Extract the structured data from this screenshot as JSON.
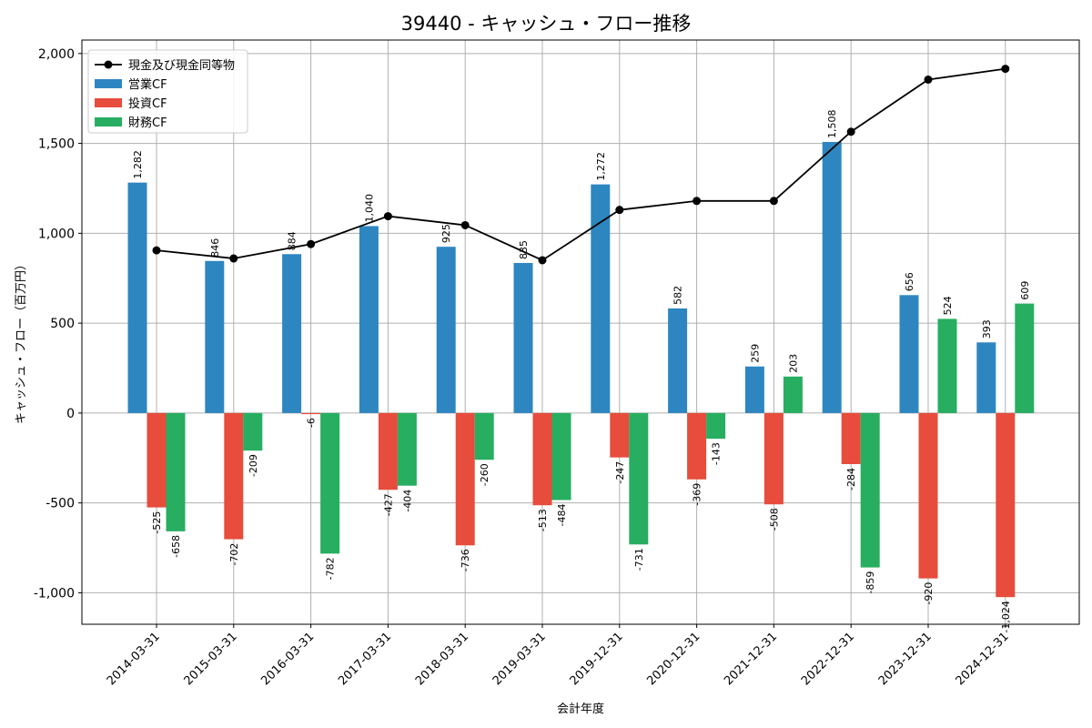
{
  "chart_data": {
    "type": "bar",
    "title": "39440 - キャッシュ・フロー推移",
    "xlabel": "会計年度",
    "ylabel": "キャッシュ・フロー（百万円）",
    "ylim": [
      -1175,
      2075
    ],
    "yticks": [
      -1000,
      -500,
      0,
      500,
      1000,
      1500,
      2000
    ],
    "ytick_labels": [
      "-1,000",
      "-500",
      "0",
      "500",
      "1,000",
      "1,500",
      "2,000"
    ],
    "grid": true,
    "legend_position": "top-left",
    "categories": [
      "2014-03-31",
      "2015-03-31",
      "2016-03-31",
      "2017-03-31",
      "2018-03-31",
      "2019-03-31",
      "2019-12-31",
      "2020-12-31",
      "2021-12-31",
      "2022-12-31",
      "2023-12-31",
      "2024-12-31"
    ],
    "series": [
      {
        "name": "営業CF",
        "kind": "bar",
        "color": "#2e86c1",
        "values": [
          1282,
          846,
          884,
          1040,
          925,
          835,
          1272,
          582,
          259,
          1508,
          656,
          393
        ],
        "labels": [
          "1,282",
          "846",
          "884",
          "1,040",
          "925",
          "835",
          "1,272",
          "582",
          "259",
          "1,508",
          "656",
          "393"
        ]
      },
      {
        "name": "投資CF",
        "kind": "bar",
        "color": "#e74c3c",
        "values": [
          -525,
          -702,
          -6,
          -427,
          -736,
          -513,
          -247,
          -369,
          -508,
          -284,
          -920,
          -1024
        ],
        "labels": [
          "-525",
          "-702",
          "-6",
          "-427",
          "-736",
          "-513",
          "-247",
          "-369",
          "-508",
          "-284",
          "-920",
          "-1,024"
        ]
      },
      {
        "name": "財務CF",
        "kind": "bar",
        "color": "#27ae60",
        "values": [
          -658,
          -209,
          -782,
          -404,
          -260,
          -484,
          -731,
          -143,
          203,
          -859,
          524,
          609
        ],
        "labels": [
          "-658",
          "-209",
          "-782",
          "-404",
          "-260",
          "-484",
          "-731",
          "-143",
          "203",
          "-859",
          "524",
          "609"
        ]
      },
      {
        "name": "現金及び現金同等物",
        "kind": "line",
        "color": "#000000",
        "values": [
          905,
          860,
          940,
          1095,
          1045,
          850,
          1130,
          1180,
          1180,
          1565,
          1855,
          1915
        ]
      }
    ]
  }
}
